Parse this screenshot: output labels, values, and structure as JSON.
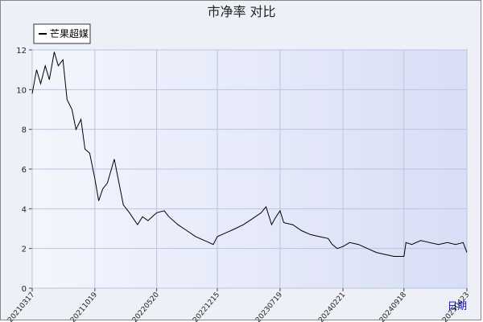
{
  "chart_data": {
    "type": "line",
    "title": "市净率  对比",
    "x_label": "日期",
    "x": [
      "20210317",
      "20210401",
      "20210415",
      "20210501",
      "20210515",
      "20210601",
      "20210615",
      "20210701",
      "20210715",
      "20210801",
      "20210815",
      "20210901",
      "20210915",
      "20211001",
      "20211019",
      "20211101",
      "20211115",
      "20211201",
      "20211215",
      "20211225",
      "20220110",
      "20220125",
      "20220215",
      "20220301",
      "20220315",
      "20220401",
      "20220420",
      "20220520",
      "20220615",
      "20220701",
      "20220801",
      "20220901",
      "20221001",
      "20221101",
      "20221201",
      "20221215",
      "20230115",
      "20230215",
      "20230315",
      "20230415",
      "20230515",
      "20230601",
      "20230620",
      "20230701",
      "20230719",
      "20230801",
      "20230901",
      "20231001",
      "20231101",
      "20231201",
      "20240101",
      "20240115",
      "20240201",
      "20240221",
      "20240315",
      "20240415",
      "20240515",
      "20240615",
      "20240715",
      "20240815",
      "20240918",
      "20240925",
      "20241015",
      "20241115",
      "20241215",
      "20250115",
      "20250215",
      "20250315",
      "20250410",
      "20250423"
    ],
    "series": [
      {
        "name": "芒果超媒",
        "color": "#000000",
        "values": [
          9.8,
          11.0,
          10.3,
          11.2,
          10.5,
          11.9,
          11.2,
          11.5,
          9.5,
          9.0,
          8.0,
          8.5,
          7.0,
          6.8,
          5.5,
          4.4,
          5.0,
          5.3,
          6.0,
          6.5,
          5.3,
          4.2,
          3.8,
          3.5,
          3.2,
          3.6,
          3.4,
          3.8,
          3.9,
          3.6,
          3.2,
          2.9,
          2.6,
          2.4,
          2.2,
          2.6,
          2.8,
          3.0,
          3.2,
          3.5,
          3.8,
          4.1,
          3.2,
          3.5,
          3.9,
          3.3,
          3.2,
          2.9,
          2.7,
          2.6,
          2.5,
          2.2,
          2.0,
          2.1,
          2.3,
          2.2,
          2.0,
          1.8,
          1.7,
          1.6,
          1.6,
          2.3,
          2.2,
          2.4,
          2.3,
          2.2,
          2.3,
          2.2,
          2.3,
          1.8
        ]
      }
    ],
    "xlim": [
      "20210317",
      "20250423"
    ],
    "xticks": [
      "20210317",
      "20211019",
      "20220520",
      "20221215",
      "20230719",
      "20240221",
      "20240918",
      "20250423"
    ],
    "ylim": [
      0,
      12
    ],
    "yticks": [
      0,
      2,
      4,
      6,
      8,
      10,
      12
    ],
    "grid": true,
    "legend": "top-left"
  }
}
